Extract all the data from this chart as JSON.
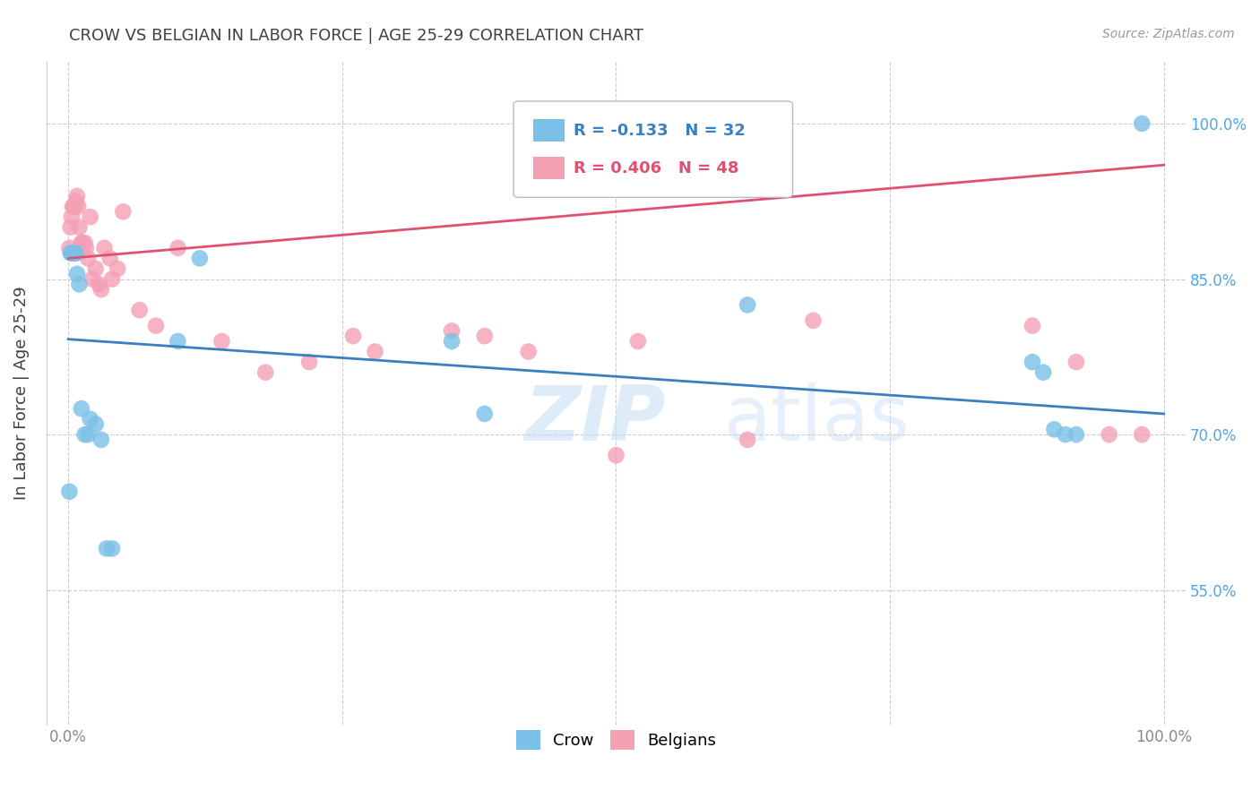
{
  "title": "CROW VS BELGIAN IN LABOR FORCE | AGE 25-29 CORRELATION CHART",
  "source": "Source: ZipAtlas.com",
  "ylabel": "In Labor Force | Age 25-29",
  "xlim": [
    -0.02,
    1.02
  ],
  "ylim": [
    0.42,
    1.06
  ],
  "crow_color": "#7bc0e8",
  "belgian_color": "#f4a0b5",
  "crow_line_color": "#3a80c0",
  "belgian_line_color": "#e05070",
  "legend_crow_r": "R = -0.133",
  "legend_crow_n": "N = 32",
  "legend_belgian_r": "R = 0.406",
  "legend_belgian_n": "N = 48",
  "watermark_zip": "ZIP",
  "watermark_atlas": "atlas",
  "crow_scatter_x": [
    0.001,
    0.002,
    0.003,
    0.004,
    0.005,
    0.006,
    0.007,
    0.008,
    0.01,
    0.012,
    0.015,
    0.018,
    0.02,
    0.025,
    0.03,
    0.035,
    0.04,
    0.1,
    0.12,
    0.35,
    0.38,
    0.62,
    0.88,
    0.89,
    0.9,
    0.91,
    0.92,
    0.98
  ],
  "crow_scatter_y": [
    0.645,
    0.875,
    0.875,
    0.875,
    0.875,
    0.875,
    0.875,
    0.855,
    0.845,
    0.725,
    0.7,
    0.7,
    0.715,
    0.71,
    0.695,
    0.59,
    0.59,
    0.79,
    0.87,
    0.79,
    0.72,
    0.825,
    0.77,
    0.76,
    0.705,
    0.7,
    0.7,
    1.0
  ],
  "belgian_scatter_x": [
    0.001,
    0.002,
    0.003,
    0.004,
    0.005,
    0.006,
    0.007,
    0.008,
    0.009,
    0.01,
    0.012,
    0.013,
    0.015,
    0.016,
    0.018,
    0.02,
    0.022,
    0.025,
    0.028,
    0.03,
    0.033,
    0.038,
    0.04,
    0.045,
    0.05,
    0.065,
    0.08,
    0.1,
    0.14,
    0.18,
    0.22,
    0.26,
    0.28,
    0.35,
    0.38,
    0.42,
    0.5,
    0.52,
    0.62,
    0.68,
    0.88,
    0.92,
    0.95,
    0.98
  ],
  "belgian_scatter_y": [
    0.88,
    0.9,
    0.91,
    0.92,
    0.92,
    0.92,
    0.925,
    0.93,
    0.92,
    0.9,
    0.885,
    0.885,
    0.885,
    0.88,
    0.87,
    0.91,
    0.85,
    0.86,
    0.845,
    0.84,
    0.88,
    0.87,
    0.85,
    0.86,
    0.915,
    0.82,
    0.805,
    0.88,
    0.79,
    0.76,
    0.77,
    0.795,
    0.78,
    0.8,
    0.795,
    0.78,
    0.68,
    0.79,
    0.695,
    0.81,
    0.805,
    0.77,
    0.7,
    0.7
  ],
  "crow_trend_x": [
    0.0,
    1.0
  ],
  "crow_trend_y": [
    0.792,
    0.72
  ],
  "belgian_trend_x": [
    0.0,
    1.0
  ],
  "belgian_trend_y": [
    0.87,
    0.96
  ],
  "ytick_positions": [
    0.55,
    0.7,
    0.85,
    1.0
  ],
  "ytick_labels": [
    "55.0%",
    "70.0%",
    "85.0%",
    "100.0%"
  ],
  "xtick_positions": [
    0.0,
    0.25,
    0.5,
    0.75,
    1.0
  ],
  "xtick_labels": [
    "0.0%",
    "",
    "",
    "",
    "100.0%"
  ],
  "background_color": "#ffffff",
  "grid_color": "#cccccc",
  "title_color": "#404040",
  "axis_label_color": "#404040",
  "right_tick_color": "#4da6e8",
  "xtick_color": "#888888"
}
